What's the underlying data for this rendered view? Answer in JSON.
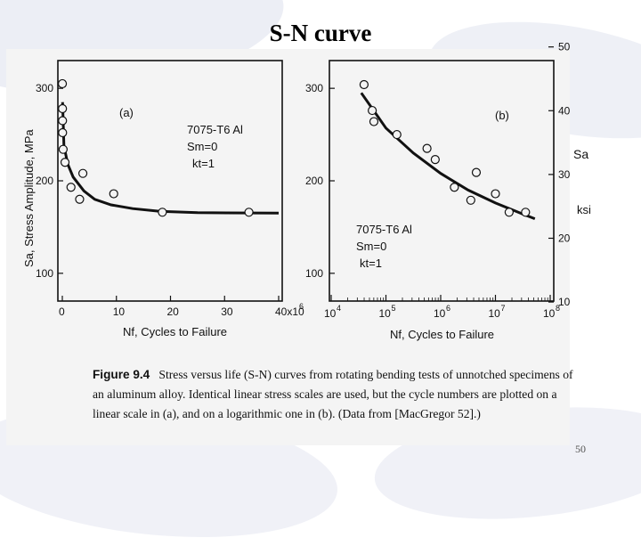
{
  "slide": {
    "title": "S-N curve",
    "page_number": "50"
  },
  "caption": {
    "label": "Figure 9.4",
    "text": "Stress versus life (S-N) curves from rotating bending tests of unnotched specimens of an aluminum alloy. Identical linear stress scales are used, but the cycle numbers are plotted on a linear scale in (a), and on a logarithmic one in (b). (Data from [MacGregor 52].)"
  },
  "chart_data": [
    {
      "type": "scatter",
      "panel_label": "(a)",
      "material": "7075-T6 Al",
      "annotations": [
        "Sm=0",
        "kt=1"
      ],
      "ylabel": "Sa, Stress Amplitude, MPa",
      "xlabel": "Nf, Cycles to Failure",
      "x_multiplier": "x10^6",
      "xlim": [
        0,
        40
      ],
      "ylim": [
        70,
        330
      ],
      "x_ticks": [
        0,
        10,
        20,
        30,
        40
      ],
      "x_tick_labels": [
        "0",
        "10",
        "20",
        "30",
        "40x10"
      ],
      "y_ticks": [
        100,
        200,
        300
      ],
      "y_tick_labels": [
        "100",
        "200",
        "300"
      ],
      "points": [
        {
          "x": 0.01,
          "y": 305
        },
        {
          "x": 0.03,
          "y": 278
        },
        {
          "x": 0.04,
          "y": 265
        },
        {
          "x": 0.05,
          "y": 252
        },
        {
          "x": 0.15,
          "y": 234
        },
        {
          "x": 0.5,
          "y": 220
        },
        {
          "x": 1.6,
          "y": 193
        },
        {
          "x": 3.2,
          "y": 180
        },
        {
          "x": 3.8,
          "y": 208
        },
        {
          "x": 9.5,
          "y": 186
        },
        {
          "x": 18.5,
          "y": 166
        },
        {
          "x": 34.5,
          "y": 166
        }
      ],
      "fit_curve": [
        {
          "x": 0.05,
          "y": 285
        },
        {
          "x": 0.3,
          "y": 238
        },
        {
          "x": 1,
          "y": 218
        },
        {
          "x": 2,
          "y": 204
        },
        {
          "x": 4,
          "y": 189
        },
        {
          "x": 6,
          "y": 180
        },
        {
          "x": 9,
          "y": 174
        },
        {
          "x": 13,
          "y": 170
        },
        {
          "x": 18,
          "y": 167
        },
        {
          "x": 25,
          "y": 165.5
        },
        {
          "x": 40,
          "y": 165
        }
      ]
    },
    {
      "type": "scatter",
      "panel_label": "(b)",
      "material": "7075-T6 Al",
      "annotations": [
        "Sm=0",
        "kt=1"
      ],
      "ylabel": "",
      "ylabel_right": [
        "Sa",
        "ksi"
      ],
      "xlabel": "Nf, Cycles to Failure",
      "x_scale": "log",
      "xlim_log10": [
        4,
        8
      ],
      "ylim": [
        70,
        330
      ],
      "x_tick_labels": [
        "10",
        "10",
        "10",
        "10",
        "10"
      ],
      "x_tick_exponents": [
        "4",
        "5",
        "6",
        "7",
        "8"
      ],
      "y_ticks": [
        100,
        200,
        300
      ],
      "y_tick_labels": [
        "100",
        "200",
        "300"
      ],
      "y_right_ticks_ksi": [
        10,
        20,
        30,
        40,
        50
      ],
      "y_right_tick_labels": [
        "10",
        "20",
        "30",
        "40",
        "50"
      ],
      "points": [
        {
          "logx": 4.6,
          "y": 304
        },
        {
          "logx": 4.75,
          "y": 276
        },
        {
          "logx": 4.78,
          "y": 264
        },
        {
          "logx": 5.2,
          "y": 250
        },
        {
          "logx": 5.75,
          "y": 235
        },
        {
          "logx": 5.9,
          "y": 223
        },
        {
          "logx": 6.25,
          "y": 193
        },
        {
          "logx": 6.55,
          "y": 179
        },
        {
          "logx": 6.65,
          "y": 209
        },
        {
          "logx": 7.0,
          "y": 186
        },
        {
          "logx": 7.25,
          "y": 166
        },
        {
          "logx": 7.55,
          "y": 166
        }
      ],
      "fit_curve": [
        {
          "logx": 4.55,
          "y": 295
        },
        {
          "logx": 5.0,
          "y": 257
        },
        {
          "logx": 5.5,
          "y": 230
        },
        {
          "logx": 6.0,
          "y": 208
        },
        {
          "logx": 6.5,
          "y": 190
        },
        {
          "logx": 7.0,
          "y": 176
        },
        {
          "logx": 7.5,
          "y": 164
        },
        {
          "logx": 7.72,
          "y": 159
        }
      ]
    }
  ]
}
